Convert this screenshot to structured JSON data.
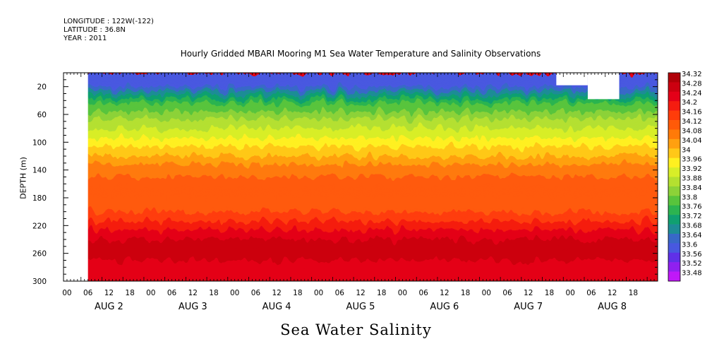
{
  "meta": {
    "longitude": "LONGITUDE : 122W(-122)",
    "latitude": "LATITUDE : 36.8N",
    "year": "YEAR : 2011"
  },
  "chart_data": {
    "type": "heatmap",
    "title": "Hourly Gridded MBARI Mooring M1 Sea Water Temperature and Salinity Observations",
    "footer_title": "Sea Water Salinity",
    "ylabel": "DEPTH (m)",
    "xlabel": "",
    "y_axis": {
      "inverted": true,
      "ylim": [
        0,
        300
      ],
      "ticks": [
        20,
        60,
        100,
        140,
        180,
        220,
        260,
        300
      ]
    },
    "x_axis": {
      "start": "2011-08-01 23:00",
      "hours_span": 170,
      "hour_ticks": [
        "00",
        "06",
        "12",
        "18",
        "00",
        "06",
        "12",
        "18",
        "00",
        "06",
        "12",
        "18",
        "00",
        "06",
        "12",
        "18",
        "00",
        "06",
        "12",
        "18",
        "00",
        "06",
        "12",
        "18",
        "00",
        "06",
        "12",
        "18"
      ],
      "day_labels": [
        "AUG  2",
        "AUG  3",
        "AUG  4",
        "AUG  5",
        "AUG  6",
        "AUG  7",
        "AUG  8"
      ]
    },
    "data_start_hour": "2011-08-02 06:00",
    "colorbar_levels": [
      "34.32",
      "34.28",
      "34.24",
      "34.2",
      "34.16",
      "34.12",
      "34.08",
      "34.04",
      "34",
      "33.96",
      "33.92",
      "33.88",
      "33.84",
      "33.8",
      "33.76",
      "33.72",
      "33.68",
      "33.64",
      "33.6",
      "33.56",
      "33.52",
      "33.48"
    ],
    "colorbar_colors": [
      "#b00008",
      "#cc0010",
      "#e40018",
      "#f51c10",
      "#ff3c0a",
      "#ff5a08",
      "#ff7a08",
      "#ffa010",
      "#ffc818",
      "#fff020",
      "#d8ee28",
      "#b4e030",
      "#8cd238",
      "#58c43c",
      "#2cb450",
      "#10a070",
      "#1e8c96",
      "#3868c8",
      "#4858e0",
      "#6030e8",
      "#9020f0",
      "#c018f8"
    ],
    "salinity_profile": {
      "depth": [
        0,
        20,
        40,
        60,
        80,
        100,
        120,
        140,
        160,
        180,
        200,
        220,
        240,
        260,
        280,
        300
      ],
      "salinity": [
        33.56,
        33.6,
        33.74,
        33.82,
        33.88,
        33.94,
        34.0,
        34.07,
        34.09,
        34.1,
        34.12,
        34.18,
        34.24,
        34.26,
        34.22,
        34.21
      ]
    },
    "missing_regions": [
      {
        "from": "2011-08-01 23:00",
        "to": "2011-08-02 06:00",
        "depth": [
          0,
          300
        ]
      },
      {
        "from": "2011-08-07 20:00",
        "to": "2011-08-08 05:00",
        "depth": [
          0,
          18
        ]
      },
      {
        "from": "2011-08-08 05:00",
        "to": "2011-08-08 14:00",
        "depth": [
          0,
          38
        ]
      }
    ]
  }
}
